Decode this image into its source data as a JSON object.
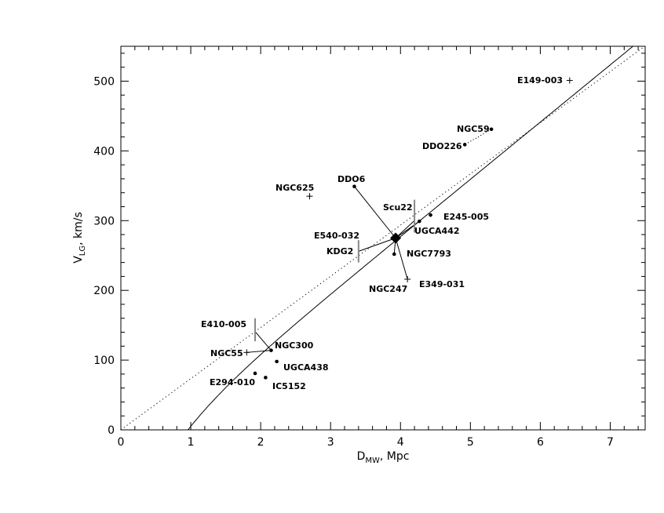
{
  "chart_data": {
    "type": "scatter",
    "xlabel": {
      "main": "D",
      "sub": "MW",
      "rest": ", Mpc"
    },
    "ylabel": {
      "main": "V",
      "sub": "LG",
      "rest": ", km/s"
    },
    "xlim": [
      0,
      7.5
    ],
    "ylim": [
      0,
      550
    ],
    "xticks": [
      0,
      1,
      2,
      3,
      4,
      5,
      6,
      7
    ],
    "yticks": [
      0,
      100,
      200,
      300,
      400,
      500
    ],
    "grid": false,
    "group_center": {
      "x": 3.93,
      "y": 275
    },
    "galaxies": [
      {
        "name": "E149-003",
        "x": 6.42,
        "y": 501,
        "marker": "plus"
      },
      {
        "name": "NGC59",
        "x": 5.3,
        "y": 431,
        "marker": "dot"
      },
      {
        "name": "DDO226",
        "x": 4.92,
        "y": 409,
        "marker": "dot"
      },
      {
        "name": "NGC625",
        "x": 2.7,
        "y": 335,
        "marker": "plus"
      },
      {
        "name": "DDO6",
        "x": 3.34,
        "y": 349,
        "marker": "dot"
      },
      {
        "name": "E245-005",
        "x": 4.43,
        "y": 308,
        "marker": "dot"
      },
      {
        "name": "UGCA442",
        "x": 4.27,
        "y": 299,
        "marker": "dot"
      },
      {
        "name": "NGC7793",
        "x": 3.91,
        "y": 252,
        "marker": "dot"
      },
      {
        "name": "E349-031",
        "x": 4.1,
        "y": 216,
        "marker": "plus"
      },
      {
        "name": "NGC300",
        "x": 2.15,
        "y": 114,
        "marker": "dot"
      },
      {
        "name": "NGC55",
        "x": 1.8,
        "y": 111,
        "marker": "plus"
      },
      {
        "name": "UGCA438",
        "x": 2.23,
        "y": 98,
        "marker": "dot"
      },
      {
        "name": "E294-010",
        "x": 1.92,
        "y": 81,
        "marker": "dot"
      },
      {
        "name": "IC5152",
        "x": 2.07,
        "y": 75,
        "marker": "dot"
      }
    ],
    "text_labels": [
      "Scu22",
      "E540-032",
      "KDG2",
      "NGC247",
      "E410-005"
    ],
    "vertical_bars": [
      {
        "x": 4.2,
        "y1": 283,
        "y2": 330
      },
      {
        "x": 3.4,
        "y1": 240,
        "y2": 272
      },
      {
        "x": 1.92,
        "y1": 127,
        "y2": 160
      }
    ],
    "connections": [
      {
        "from": [
          3.93,
          275
        ],
        "to": [
          3.34,
          349
        ]
      },
      {
        "from": [
          3.93,
          275
        ],
        "to": [
          4.27,
          299
        ]
      },
      {
        "from": [
          3.93,
          275
        ],
        "to": [
          4.1,
          216
        ]
      },
      {
        "from": [
          3.93,
          275
        ],
        "to": [
          3.91,
          252
        ]
      },
      {
        "from": [
          3.93,
          275
        ],
        "to": [
          3.4,
          256
        ]
      },
      {
        "from": [
          3.93,
          275
        ],
        "to": [
          4.2,
          300
        ]
      },
      {
        "from": [
          2.15,
          114
        ],
        "to": [
          1.8,
          111
        ]
      },
      {
        "from": [
          2.15,
          114
        ],
        "to": [
          1.92,
          141
        ]
      },
      {
        "from": [
          5.3,
          431
        ],
        "to": [
          4.92,
          409
        ],
        "style": "dotted"
      }
    ],
    "lines": [
      {
        "style": "dotted",
        "slope": 73.4,
        "intercept": 0
      },
      {
        "style": "solid",
        "kind": "curve",
        "d0": 0.96,
        "slope": 82.0,
        "rel_curve": 1.1
      }
    ]
  }
}
